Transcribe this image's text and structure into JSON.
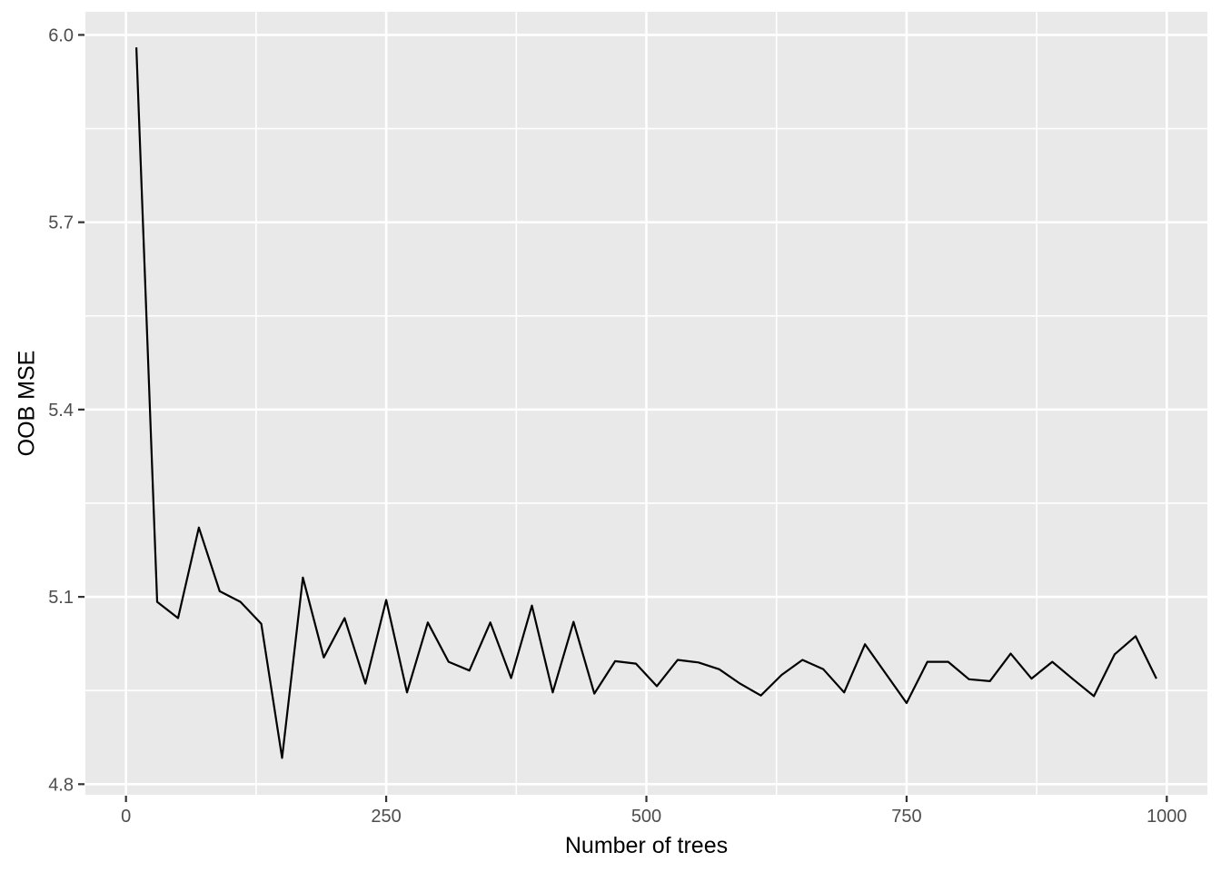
{
  "chart_data": {
    "type": "line",
    "title": "",
    "xlabel": "Number of trees",
    "ylabel": "OOB MSE",
    "x_tick_values": [
      0,
      250,
      500,
      750,
      1000
    ],
    "x_tick_labels": [
      "0",
      "250",
      "500",
      "750",
      "1000"
    ],
    "y_tick_values": [
      4.8,
      5.1,
      5.4,
      5.7,
      6.0
    ],
    "y_tick_labels": [
      "4.8",
      "5.1",
      "5.4",
      "5.7",
      "6.0"
    ],
    "x_minor_gridlines": [
      125,
      375,
      625,
      875
    ],
    "y_minor_gridlines": [
      4.95,
      5.25,
      5.55,
      5.85
    ],
    "xlim": [
      -39,
      1039
    ],
    "ylim": [
      4.783,
      6.037
    ],
    "grid": true,
    "legend": false,
    "colors": {
      "line": "#000000",
      "panel_bg": "#E9E9E9",
      "gridline": "#FFFFFF",
      "tick_text": "#4D4D4D",
      "tick_mark": "#333333",
      "axis_title": "#000000",
      "outer_bg": "#FFFFFF"
    },
    "series": [
      {
        "name": "OOB MSE",
        "x": [
          10,
          30,
          50,
          70,
          90,
          110,
          130,
          150,
          170,
          190,
          210,
          230,
          250,
          270,
          290,
          310,
          330,
          350,
          370,
          390,
          410,
          430,
          450,
          470,
          490,
          510,
          530,
          550,
          570,
          590,
          610,
          630,
          650,
          670,
          690,
          710,
          730,
          750,
          770,
          790,
          810,
          830,
          850,
          870,
          890,
          910,
          930,
          950,
          970,
          990
        ],
        "y": [
          5.98,
          5.092,
          5.066,
          5.211,
          5.109,
          5.092,
          5.057,
          4.842,
          5.131,
          5.003,
          5.066,
          4.961,
          5.095,
          4.947,
          5.059,
          4.996,
          4.982,
          5.059,
          4.97,
          5.086,
          4.947,
          5.06,
          4.945,
          4.997,
          4.993,
          4.957,
          4.999,
          4.995,
          4.984,
          4.961,
          4.942,
          4.975,
          4.999,
          4.984,
          4.947,
          5.024,
          4.977,
          4.93,
          4.996,
          4.996,
          4.968,
          4.965,
          5.009,
          4.969,
          4.996,
          4.968,
          4.941,
          5.008,
          5.037,
          4.969
        ]
      }
    ]
  }
}
